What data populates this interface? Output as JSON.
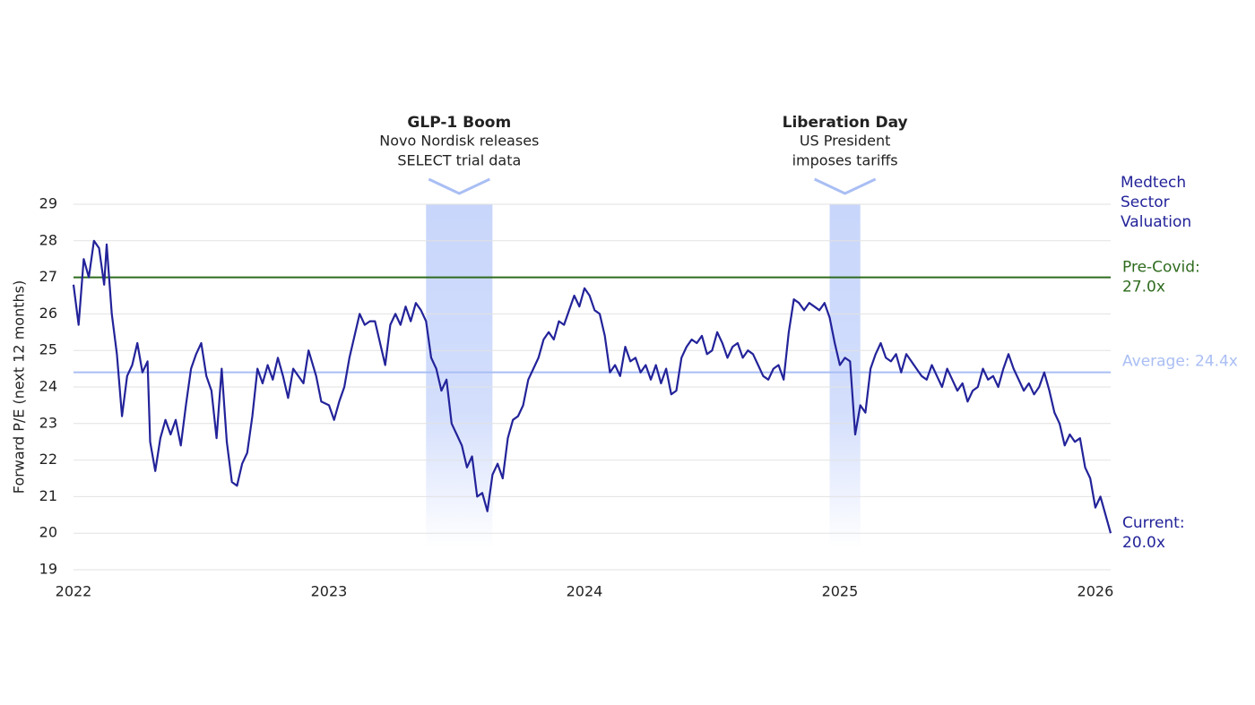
{
  "chart_data": {
    "type": "line",
    "y_label": "Forward P/E (next 12 months)",
    "xlim": [
      2022,
      2026.06
    ],
    "xticks": [
      2022,
      2023,
      2024,
      2025,
      2026
    ],
    "ylim": [
      19,
      29
    ],
    "yticks": [
      19,
      20,
      21,
      22,
      23,
      24,
      25,
      26,
      27,
      28,
      29
    ],
    "grid": true,
    "x": [
      2022.0,
      2022.02,
      2022.04,
      2022.06,
      2022.08,
      2022.1,
      2022.12,
      2022.13,
      2022.15,
      2022.17,
      2022.19,
      2022.21,
      2022.23,
      2022.25,
      2022.27,
      2022.29,
      2022.3,
      2022.32,
      2022.34,
      2022.36,
      2022.38,
      2022.4,
      2022.42,
      2022.44,
      2022.46,
      2022.48,
      2022.5,
      2022.52,
      2022.54,
      2022.56,
      2022.58,
      2022.6,
      2022.62,
      2022.64,
      2022.66,
      2022.68,
      2022.7,
      2022.72,
      2022.74,
      2022.76,
      2022.78,
      2022.8,
      2022.82,
      2022.84,
      2022.86,
      2022.88,
      2022.9,
      2022.92,
      2022.95,
      2022.97,
      2023.0,
      2023.02,
      2023.04,
      2023.06,
      2023.08,
      2023.1,
      2023.12,
      2023.14,
      2023.16,
      2023.18,
      2023.2,
      2023.22,
      2023.24,
      2023.26,
      2023.28,
      2023.3,
      2023.32,
      2023.34,
      2023.36,
      2023.38,
      2023.4,
      2023.42,
      2023.44,
      2023.46,
      2023.48,
      2023.5,
      2023.52,
      2023.54,
      2023.56,
      2023.58,
      2023.6,
      2023.62,
      2023.64,
      2023.66,
      2023.68,
      2023.7,
      2023.72,
      2023.74,
      2023.76,
      2023.78,
      2023.8,
      2023.82,
      2023.84,
      2023.86,
      2023.88,
      2023.9,
      2023.92,
      2023.94,
      2023.96,
      2023.98,
      2024.0,
      2024.02,
      2024.04,
      2024.06,
      2024.08,
      2024.1,
      2024.12,
      2024.14,
      2024.16,
      2024.18,
      2024.2,
      2024.22,
      2024.24,
      2024.26,
      2024.28,
      2024.3,
      2024.32,
      2024.34,
      2024.36,
      2024.38,
      2024.4,
      2024.42,
      2024.44,
      2024.46,
      2024.48,
      2024.5,
      2024.52,
      2024.54,
      2024.56,
      2024.58,
      2024.6,
      2024.62,
      2024.64,
      2024.66,
      2024.68,
      2024.7,
      2024.72,
      2024.74,
      2024.76,
      2024.78,
      2024.8,
      2024.82,
      2024.84,
      2024.86,
      2024.88,
      2024.9,
      2024.92,
      2024.94,
      2024.96,
      2024.98,
      2025.0,
      2025.02,
      2025.04,
      2025.06,
      2025.08,
      2025.1,
      2025.12,
      2025.14,
      2025.16,
      2025.18,
      2025.2,
      2025.22,
      2025.24,
      2025.26,
      2025.28,
      2025.3,
      2025.32,
      2025.34,
      2025.36,
      2025.38,
      2025.4,
      2025.42,
      2025.44,
      2025.46,
      2025.48,
      2025.5,
      2025.52,
      2025.54,
      2025.56,
      2025.58,
      2025.6,
      2025.62,
      2025.64,
      2025.66,
      2025.68,
      2025.7,
      2025.72,
      2025.74,
      2025.76,
      2025.78,
      2025.8,
      2025.82,
      2025.84,
      2025.86,
      2025.88,
      2025.9,
      2025.92,
      2025.94,
      2025.96,
      2025.98,
      2026.0,
      2026.02,
      2026.04,
      2026.06
    ],
    "series": [
      {
        "name": "Medtech Sector Valuation",
        "color": "#23239a",
        "values": [
          26.8,
          25.7,
          27.5,
          27.0,
          28.0,
          27.8,
          26.8,
          27.9,
          26.0,
          24.9,
          23.2,
          24.3,
          24.6,
          25.2,
          24.4,
          24.7,
          22.5,
          21.7,
          22.6,
          23.1,
          22.7,
          23.1,
          22.4,
          23.5,
          24.5,
          24.9,
          25.2,
          24.3,
          23.9,
          22.6,
          24.5,
          22.5,
          21.4,
          21.3,
          21.9,
          22.2,
          23.2,
          24.5,
          24.1,
          24.6,
          24.2,
          24.8,
          24.3,
          23.7,
          24.5,
          24.3,
          24.1,
          25.0,
          24.3,
          23.6,
          23.5,
          23.1,
          23.6,
          24.0,
          24.8,
          25.4,
          26.0,
          25.7,
          25.8,
          25.8,
          25.2,
          24.6,
          25.7,
          26.0,
          25.7,
          26.2,
          25.8,
          26.3,
          26.1,
          25.8,
          24.8,
          24.5,
          23.9,
          24.2,
          23.0,
          22.7,
          22.4,
          21.8,
          22.1,
          21.0,
          21.1,
          20.6,
          21.6,
          21.9,
          21.5,
          22.6,
          23.1,
          23.2,
          23.5,
          24.2,
          24.5,
          24.8,
          25.3,
          25.5,
          25.3,
          25.8,
          25.7,
          26.1,
          26.5,
          26.2,
          26.7,
          26.5,
          26.1,
          26.0,
          25.4,
          24.4,
          24.6,
          24.3,
          25.1,
          24.7,
          24.8,
          24.4,
          24.6,
          24.2,
          24.6,
          24.1,
          24.5,
          23.8,
          23.9,
          24.8,
          25.1,
          25.3,
          25.2,
          25.4,
          24.9,
          25.0,
          25.5,
          25.2,
          24.8,
          25.1,
          25.2,
          24.8,
          25.0,
          24.9,
          24.6,
          24.3,
          24.2,
          24.5,
          24.6,
          24.2,
          25.5,
          26.4,
          26.3,
          26.1,
          26.3,
          26.2,
          26.1,
          26.3,
          25.9,
          25.2,
          24.6,
          24.8,
          24.7,
          22.7,
          23.5,
          23.3,
          24.5,
          24.9,
          25.2,
          24.8,
          24.7,
          24.9,
          24.4,
          24.9,
          24.7,
          24.5,
          24.3,
          24.2,
          24.6,
          24.3,
          24.0,
          24.5,
          24.2,
          23.9,
          24.1,
          23.6,
          23.9,
          24.0,
          24.5,
          24.2,
          24.3,
          24.0,
          24.5,
          24.9,
          24.5,
          24.2,
          23.9,
          24.1,
          23.8,
          24.0,
          24.4,
          23.9,
          23.3,
          23.0,
          22.4,
          22.7,
          22.5,
          22.6,
          21.8,
          21.5,
          20.7,
          21.0,
          20.5,
          20.0
        ],
        "end_label": "Current:",
        "end_value_label": "20.0x"
      }
    ],
    "reference_lines": [
      {
        "name": "Pre-Covid:",
        "value": 27,
        "label": "27.0x",
        "color": "#2e6b1e"
      },
      {
        "name": "Average: 24.4x",
        "value": 24.4,
        "color": "#a9bef4"
      }
    ],
    "annotations": [
      {
        "x_start": 2023.38,
        "x_end": 2023.64,
        "title": "GLP-1 Boom",
        "lines": [
          "Novo Nordisk releases",
          "SELECT trial data"
        ]
      },
      {
        "x_start": 2024.96,
        "x_end": 2025.08,
        "title": "Liberation Day",
        "lines": [
          "US President",
          "imposes tariffs"
        ]
      }
    ]
  }
}
